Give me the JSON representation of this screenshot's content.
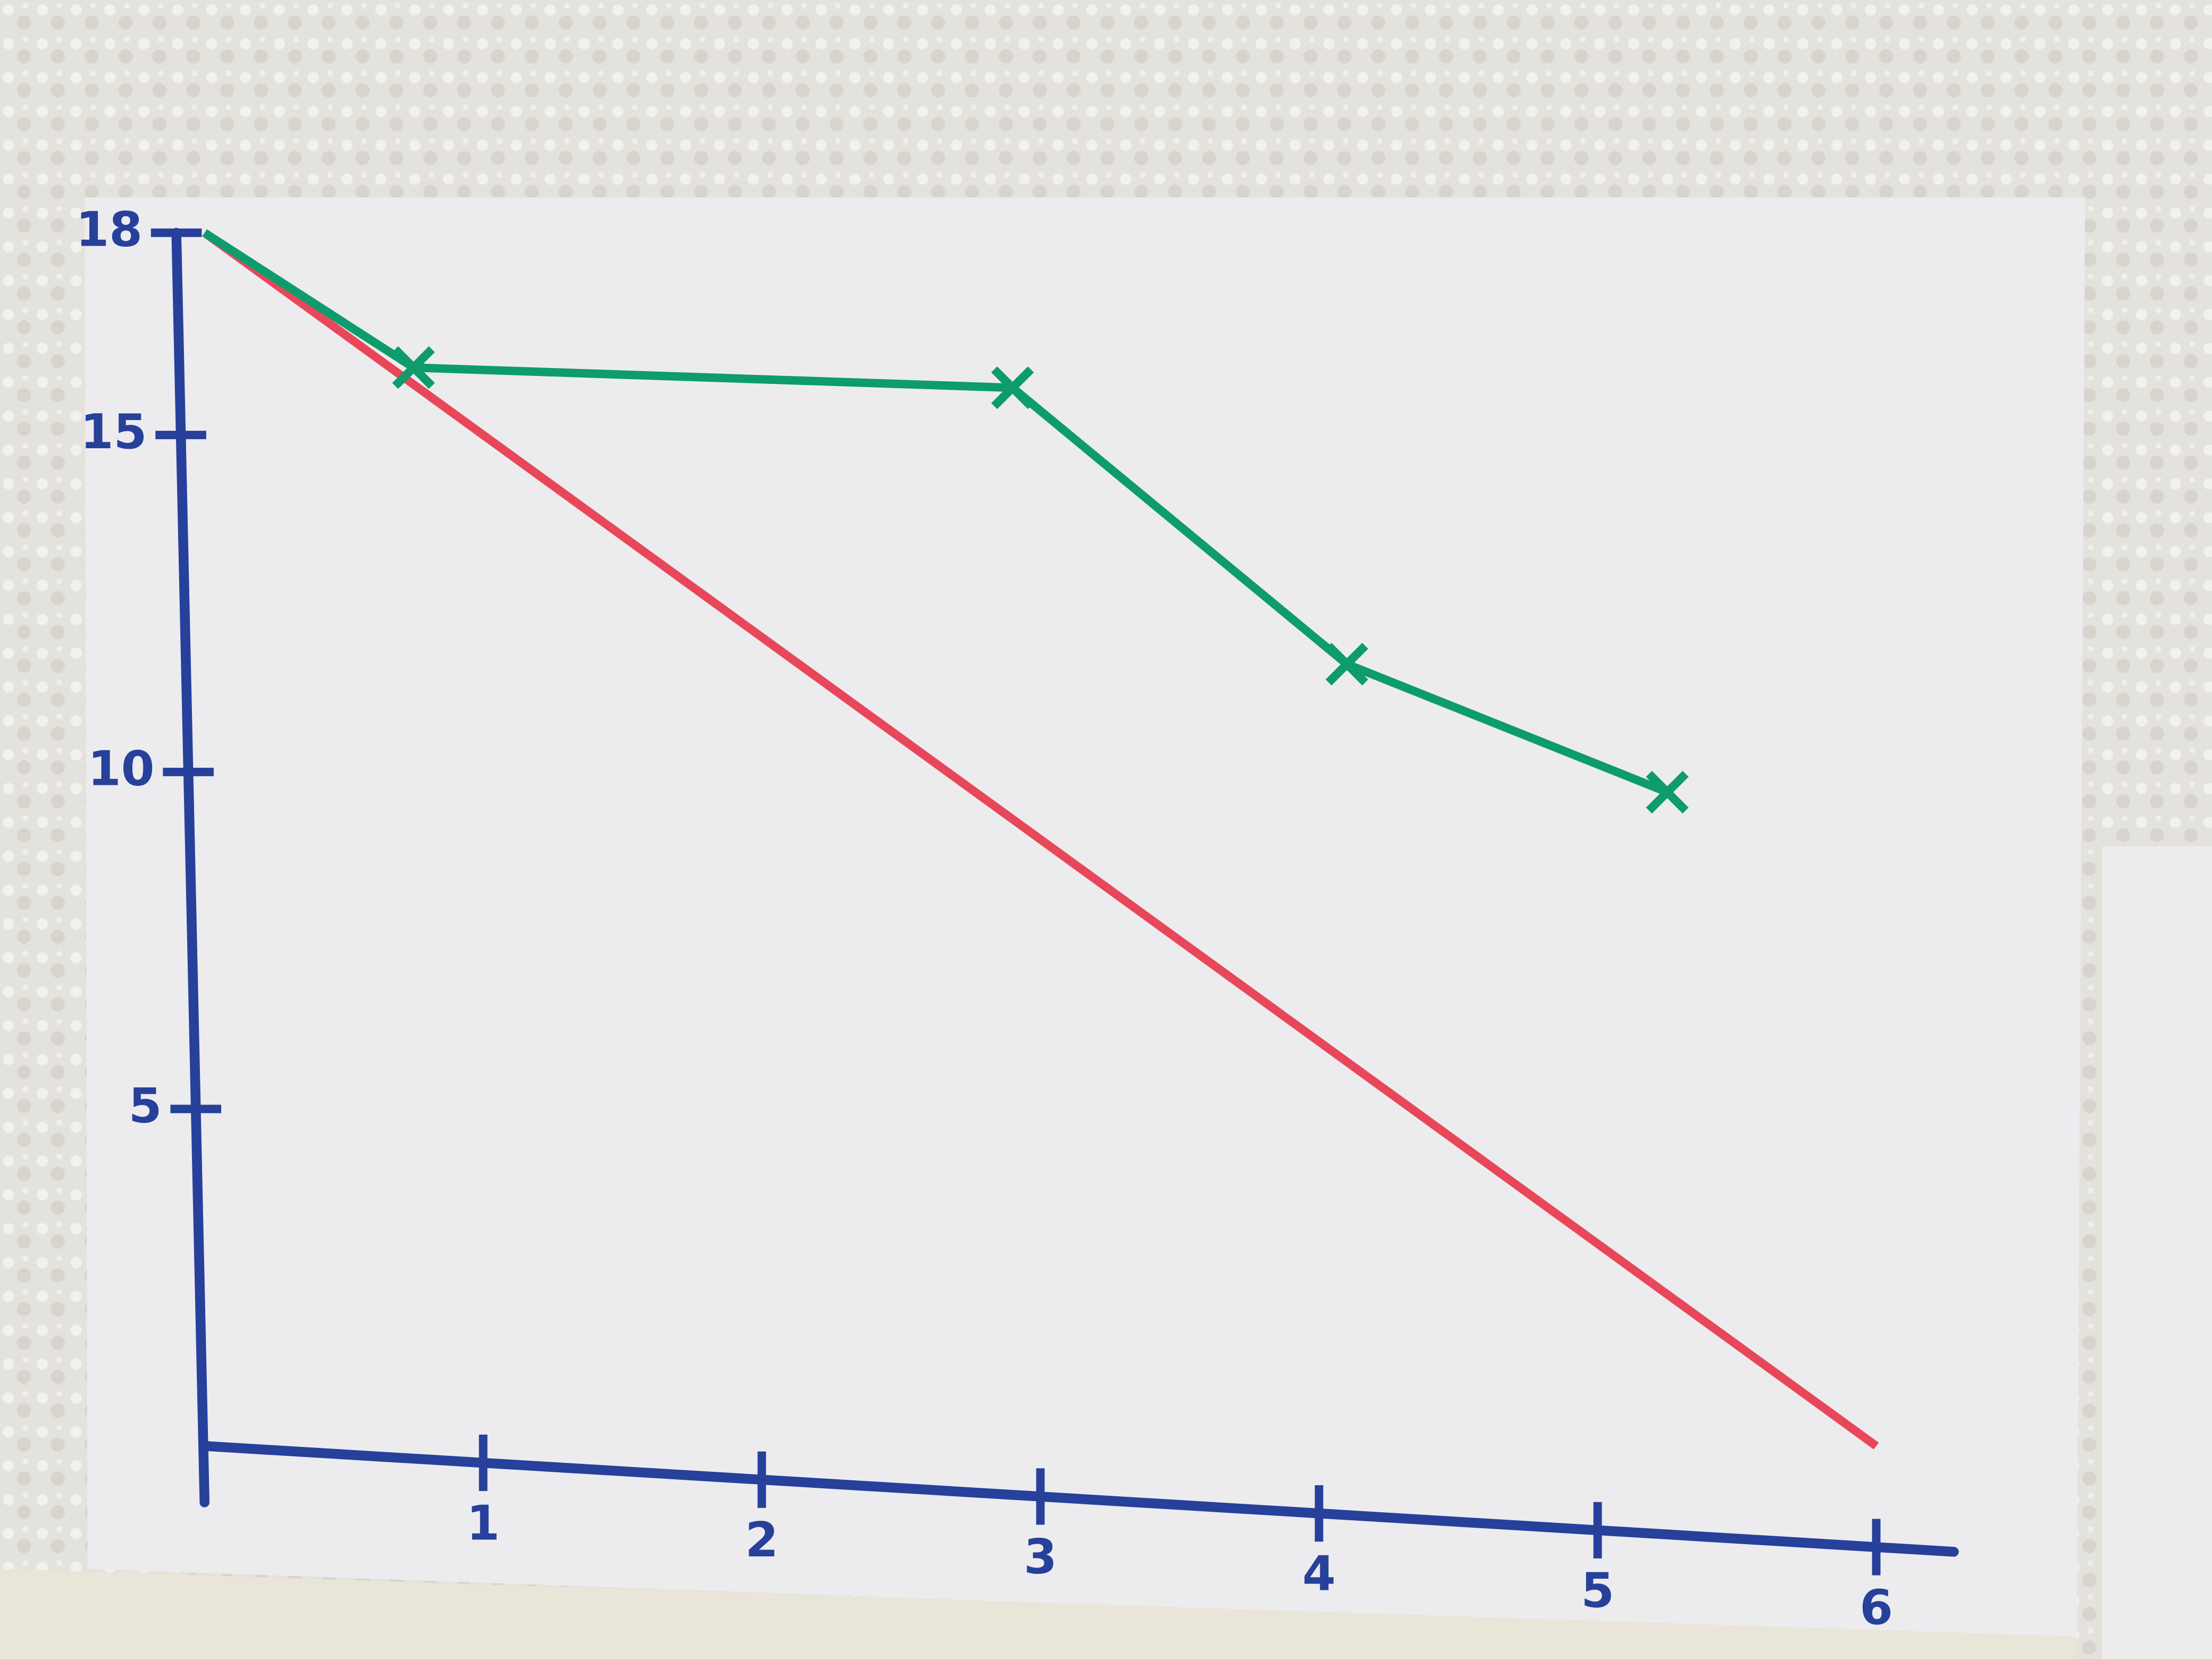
{
  "chart_data": {
    "type": "line",
    "xlim": [
      0,
      6
    ],
    "xticks": [
      1,
      2,
      3,
      4,
      5,
      6
    ],
    "ylim": [
      0,
      18
    ],
    "yticks": [
      5,
      10,
      15,
      18
    ],
    "axis_color": "#27409a",
    "series": [
      {
        "color": "#e8475a",
        "x": [
          0,
          6
        ],
        "values": [
          18,
          0
        ]
      },
      {
        "color": "#0e9c6c",
        "x": [
          0,
          0.75,
          2.9,
          4.1,
          5.25
        ],
        "values": [
          18,
          16,
          15.7,
          11.6,
          9.7
        ],
        "markers": true
      }
    ]
  }
}
